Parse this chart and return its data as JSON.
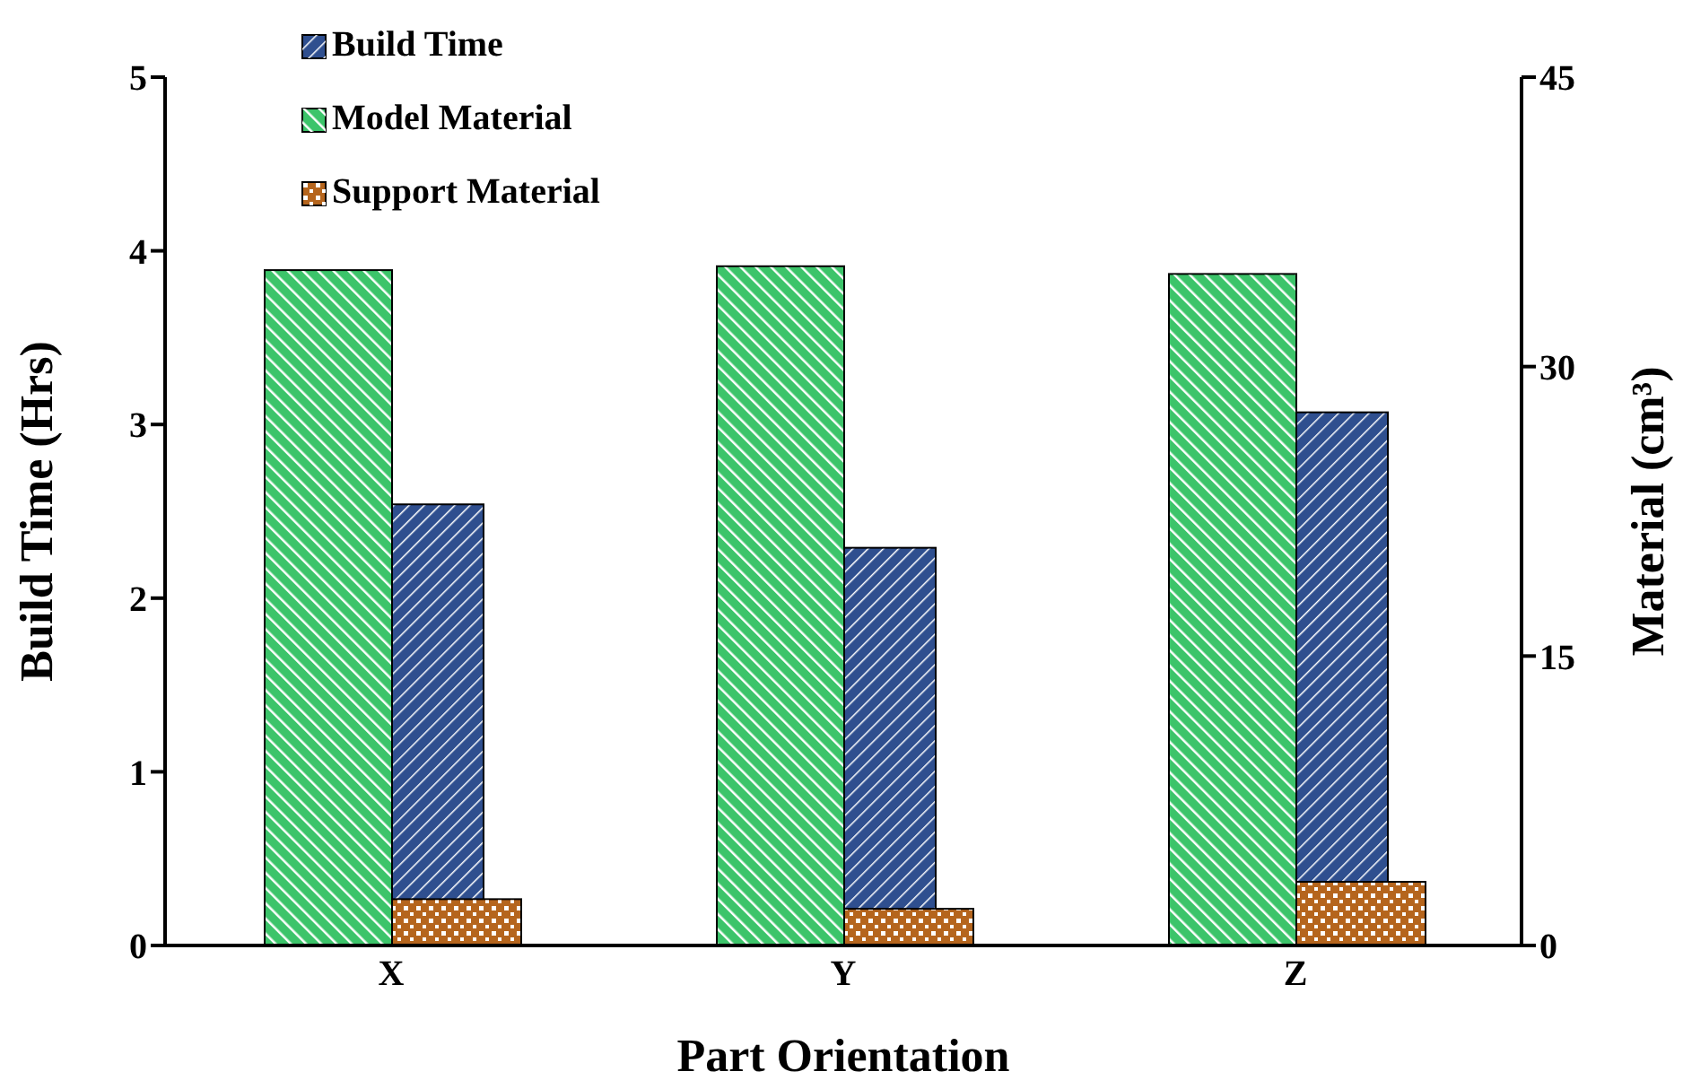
{
  "chart_data": {
    "type": "bar",
    "xlabel": "Part Orientation",
    "ylabel": "Build Time (Hrs)",
    "y2label": "Material (cm³)",
    "categories": [
      "X",
      "Y",
      "Z"
    ],
    "series": [
      {
        "name": "Build Time",
        "color": "#2f4f8f",
        "axis": "y",
        "values": [
          2.54,
          2.29,
          3.07
        ]
      },
      {
        "name": "Model Material",
        "color": "#3cc46a",
        "axis": "y2",
        "values": [
          35.0,
          35.2,
          34.8
        ]
      },
      {
        "name": "Support Material",
        "color": "#b5651d",
        "axis": "y2",
        "values": [
          2.4,
          1.9,
          3.3
        ]
      }
    ],
    "ylim": [
      0,
      5
    ],
    "yticks": [
      0,
      1,
      2,
      3,
      4,
      5
    ],
    "y2lim": [
      0,
      45
    ],
    "y2ticks": [
      0,
      15,
      30,
      45
    ],
    "grid": false,
    "legend": "top left"
  }
}
